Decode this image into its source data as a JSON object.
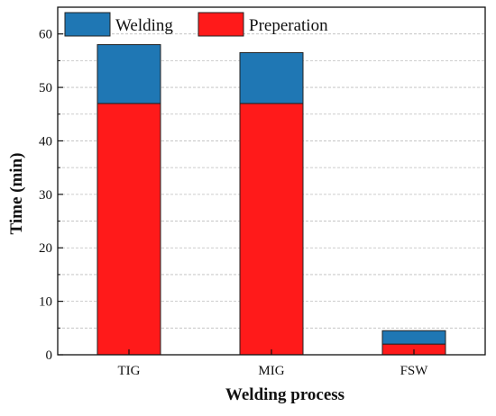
{
  "chart_data": {
    "type": "bar",
    "stacked": true,
    "xlabel": "Welding process",
    "ylabel": "Time (min)",
    "categories": [
      "TIG",
      "MIG",
      "FSW"
    ],
    "series": [
      {
        "name": "Preperation",
        "color": "#ff1a1a",
        "values": [
          47,
          47,
          2
        ]
      },
      {
        "name": "Welding",
        "color": "#1f77b4",
        "values": [
          11,
          9.5,
          2.5
        ]
      }
    ],
    "ylim": [
      0,
      65
    ],
    "yticks": [
      0,
      10,
      20,
      30,
      40,
      50,
      60
    ],
    "grid": true,
    "legend_position": "top-left",
    "legend_order": [
      "Welding",
      "Preperation"
    ]
  }
}
